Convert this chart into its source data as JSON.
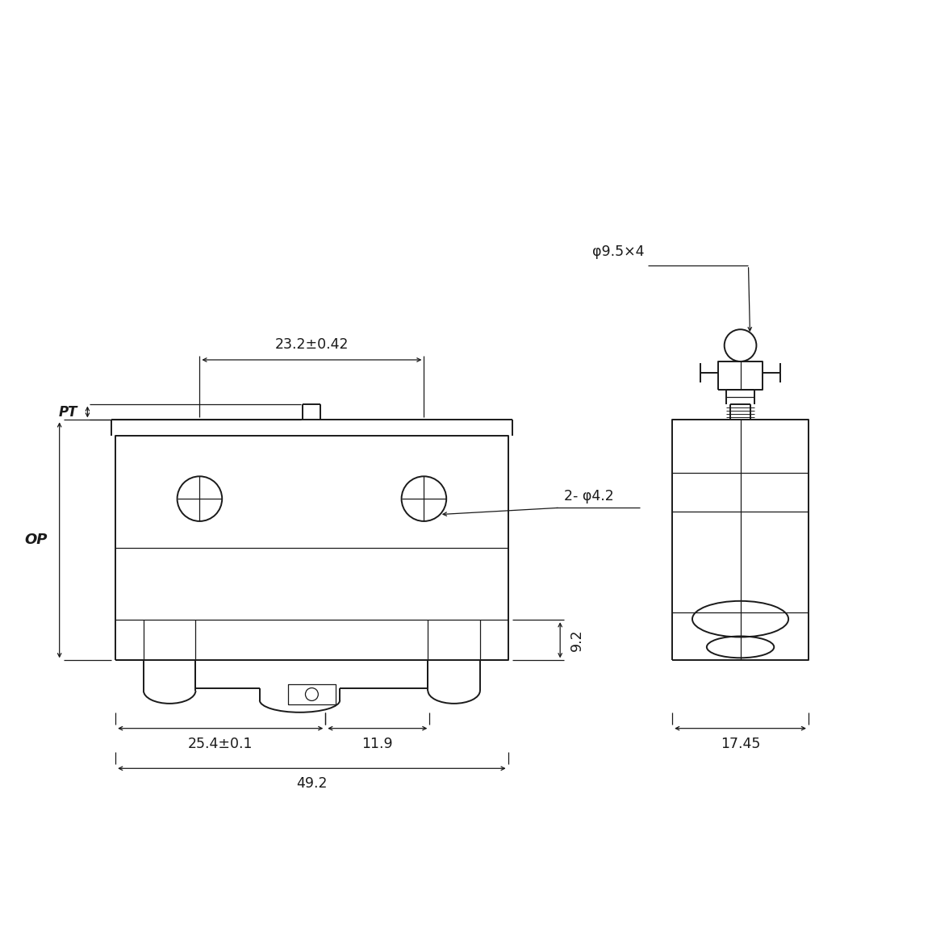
{
  "bg_color": "#ffffff",
  "line_color": "#1a1a1a",
  "lw": 1.4,
  "lw_thin": 0.9,
  "lw_dim": 0.9,
  "dim_23_2": "23.2±0.42",
  "dim_2_phi4_2": "2- φ4.2",
  "dim_25_4": "25.4±0.1",
  "dim_11_9": "11.9",
  "dim_49_2": "49.2",
  "dim_9_2": "9.2",
  "dim_OP": "OP",
  "dim_PT": "PT",
  "dim_phi9_5": "φ9.5×4",
  "dim_17_45": "17.45"
}
